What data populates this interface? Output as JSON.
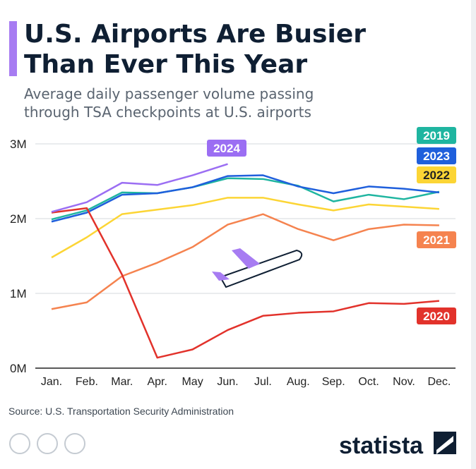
{
  "chart_data": {
    "type": "line",
    "title": [
      "U.S. Airports Are Busier",
      "Than Ever This Year"
    ],
    "subtitle": [
      "Average daily passenger volume passing",
      "through TSA checkpoints at U.S. airports"
    ],
    "source": "Source: U.S. Transportation Security Administration",
    "brand": "statista",
    "categories": [
      "Jan.",
      "Feb.",
      "Mar.",
      "Apr.",
      "May",
      "Jun.",
      "Jul.",
      "Aug.",
      "Sep.",
      "Oct.",
      "Nov.",
      "Dec."
    ],
    "ylim": [
      0,
      3
    ],
    "yticks": [
      {
        "value": 0,
        "label": "0M"
      },
      {
        "value": 1,
        "label": "1M"
      },
      {
        "value": 2,
        "label": "2M"
      },
      {
        "value": 3,
        "label": "3M"
      }
    ],
    "grid": true,
    "series": [
      {
        "name": "2021",
        "color": "#f5834f",
        "values": [
          0.79,
          0.88,
          1.23,
          1.41,
          1.62,
          1.92,
          2.06,
          1.86,
          1.71,
          1.86,
          1.92,
          1.91
        ]
      },
      {
        "name": "2022",
        "color": "#fcd535",
        "values": [
          1.48,
          1.75,
          2.06,
          2.12,
          2.18,
          2.28,
          2.28,
          2.19,
          2.11,
          2.19,
          2.16,
          2.13
        ]
      },
      {
        "name": "2019",
        "color": "#1fb5a0",
        "values": [
          1.99,
          2.11,
          2.35,
          2.34,
          2.42,
          2.54,
          2.53,
          2.44,
          2.23,
          2.32,
          2.26,
          2.36
        ]
      },
      {
        "name": "2023",
        "color": "#1f5fdc",
        "values": [
          1.96,
          2.08,
          2.32,
          2.34,
          2.42,
          2.57,
          2.58,
          2.43,
          2.34,
          2.43,
          2.4,
          2.35
        ]
      },
      {
        "name": "2020",
        "color": "#e2322b",
        "values": [
          2.08,
          2.14,
          1.25,
          0.14,
          0.25,
          0.51,
          0.7,
          0.74,
          0.76,
          0.87,
          0.86,
          0.9
        ]
      },
      {
        "name": "2024",
        "color": "#9b6ef3",
        "values": [
          2.09,
          2.22,
          2.48,
          2.45,
          2.58,
          2.73,
          null,
          null,
          null,
          null,
          null,
          null
        ]
      }
    ]
  }
}
